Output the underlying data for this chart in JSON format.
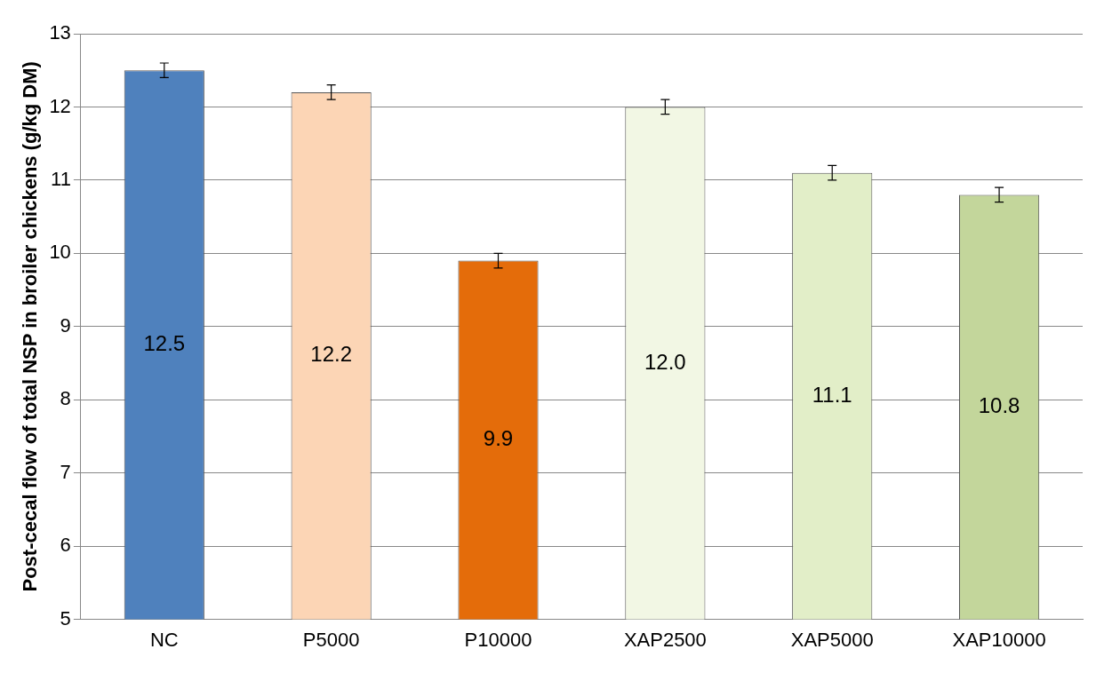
{
  "chart_data": {
    "type": "bar",
    "ylabel": "Post-cecal flow of total NSP in broiler chickens (g/kg DM)",
    "categories": [
      "NC",
      "P5000",
      "P10000",
      "XAP2500",
      "XAP5000",
      "XAP10000"
    ],
    "values": [
      12.5,
      12.2,
      9.9,
      12.0,
      11.1,
      10.8
    ],
    "errors": [
      0.1,
      0.1,
      0.1,
      0.1,
      0.1,
      0.1
    ],
    "value_labels": [
      "12.5",
      "12.2",
      "9.9",
      "12.0",
      "11.1",
      "10.8"
    ],
    "colors": [
      "#4f81bd",
      "#fcd5b5",
      "#e46c0a",
      "#f2f7e4",
      "#e2eec8",
      "#c3d69b"
    ],
    "ylim": [
      5,
      13
    ],
    "yticks": [
      5,
      6,
      7,
      8,
      9,
      10,
      11,
      12,
      13
    ],
    "grid": "y",
    "legend": false
  }
}
